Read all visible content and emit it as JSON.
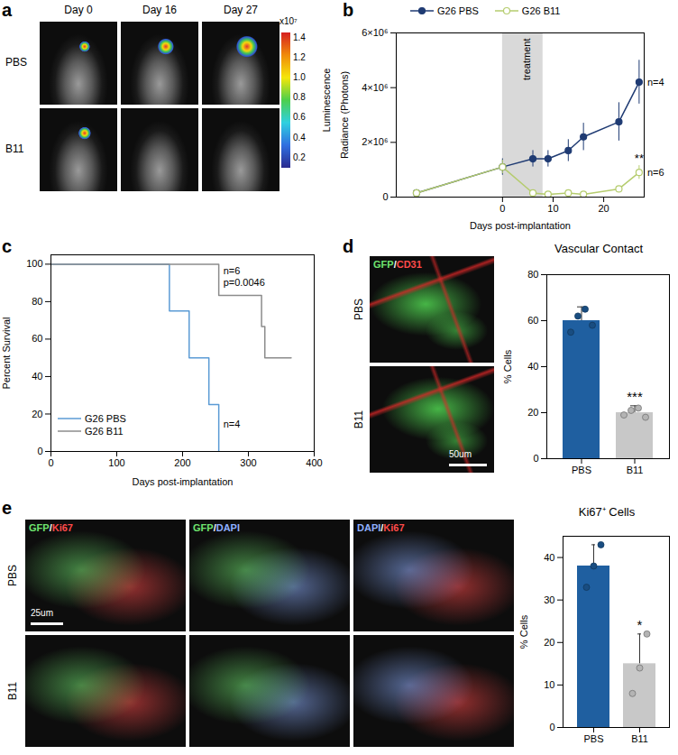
{
  "image_panels": [
    {
      "panel": "a",
      "columns": [
        "Day 0",
        "Day 16",
        "Day 27"
      ],
      "rows": [
        "PBS",
        "B11"
      ],
      "colorbar": {
        "label": "Luminescence",
        "multiplier": "x10⁷",
        "range": [
          0.1,
          1.45
        ],
        "ticks": [
          0.2,
          0.4,
          0.6,
          0.8,
          {
            "value": 1,
            "label": "1.0"
          },
          1.2,
          1.4
        ]
      }
    },
    {
      "panel": "d",
      "stain": "GFP/CD31",
      "rows": [
        "PBS",
        "B11"
      ],
      "scale_bar": "50um"
    },
    {
      "panel": "e",
      "columns": [
        "GFP/Ki67",
        "GFP/DAPI",
        "DAPI/Ki67"
      ],
      "rows": [
        "PBS",
        "B11"
      ],
      "scale_bar": "25um"
    }
  ],
  "chart_data": [
    {
      "panel": "b",
      "type": "line",
      "xlabel": "Days post-implantation",
      "ylabel": "Radiance (Photons)",
      "x": [
        -17,
        0,
        6,
        9,
        13,
        16,
        23,
        27
      ],
      "series": [
        {
          "name": "G26 PBS",
          "color": "#1f3b73",
          "marker": "circle",
          "annotation": "n=4",
          "values": [
            150000,
            1100000,
            1400000,
            1400000,
            1700000,
            2200000,
            2750000,
            4200000
          ],
          "errors": [
            50000,
            300000,
            300000,
            300000,
            400000,
            500000,
            700000,
            800000
          ]
        },
        {
          "name": "G26 B11",
          "color": "#b5cc6e",
          "marker": "circle-open",
          "annotation": "n=6",
          "significance": "**",
          "values": [
            150000,
            1100000,
            150000,
            100000,
            150000,
            100000,
            300000,
            900000
          ],
          "errors": [
            50000,
            250000,
            50000,
            50000,
            50000,
            50000,
            100000,
            250000
          ]
        }
      ],
      "xlim": [
        -21,
        28
      ],
      "xticks": [
        0,
        10,
        20
      ],
      "ylim": [
        0,
        6000000
      ],
      "yticks": [
        0,
        {
          "value": 2000000,
          "label": "2×10⁶"
        },
        {
          "value": 4000000,
          "label": "4×10⁶"
        },
        {
          "value": 6000000,
          "label": "6×10⁶"
        }
      ],
      "shaded_region": {
        "x": [
          0,
          8
        ],
        "label": "treatment"
      },
      "legend": "top"
    },
    {
      "panel": "c",
      "type": "step",
      "xlabel": "Days post-implantation",
      "ylabel": "Percent Survival",
      "series": [
        {
          "name": "G26 PBS",
          "color": "#5b9bd5",
          "x": [
            0,
            180,
            210,
            240,
            255
          ],
          "values": [
            100,
            75,
            50,
            25,
            0
          ],
          "annotation": [
            "n=4"
          ]
        },
        {
          "name": "G26 B11",
          "color": "#8c8c8c",
          "x": [
            0,
            255,
            320,
            325,
            365
          ],
          "values": [
            100,
            83.3,
            66.7,
            50,
            50
          ],
          "annotation": [
            "n=6",
            "p=0.0046"
          ]
        }
      ],
      "xlim": [
        0,
        400
      ],
      "xticks": [
        0,
        100,
        200,
        300,
        400
      ],
      "ylim": [
        0,
        105
      ],
      "yticks": [
        0,
        20,
        40,
        60,
        80,
        100
      ],
      "legend": "bottom-left"
    },
    {
      "panel": "d",
      "type": "bar",
      "title": "Vascular Contact",
      "ylabel": "% Cells",
      "categories": [
        "PBS",
        "B11"
      ],
      "values": [
        60,
        20
      ],
      "errors": [
        6,
        3
      ],
      "points": [
        [
          55,
          62,
          65,
          58
        ],
        [
          19,
          21,
          22,
          18
        ]
      ],
      "colors": [
        "#1f5fa0",
        "#c8c8c8"
      ],
      "ylim": [
        0,
        80
      ],
      "yticks": [
        0,
        20,
        40,
        60,
        80
      ],
      "significance": {
        "category": "B11",
        "label": "***"
      }
    },
    {
      "panel": "e",
      "type": "bar",
      "title": "Ki67⁺ Cells",
      "ylabel": "% Cells",
      "categories": [
        "PBS",
        "B11"
      ],
      "values": [
        38,
        15
      ],
      "errors": [
        5,
        7
      ],
      "points": [
        [
          33,
          38,
          43
        ],
        [
          8,
          14,
          22
        ]
      ],
      "colors": [
        "#1f5fa0",
        "#c8c8c8"
      ],
      "ylim": [
        0,
        45
      ],
      "yticks": [
        0,
        10,
        20,
        30,
        40
      ],
      "significance": {
        "category": "B11",
        "label": "*"
      }
    }
  ]
}
